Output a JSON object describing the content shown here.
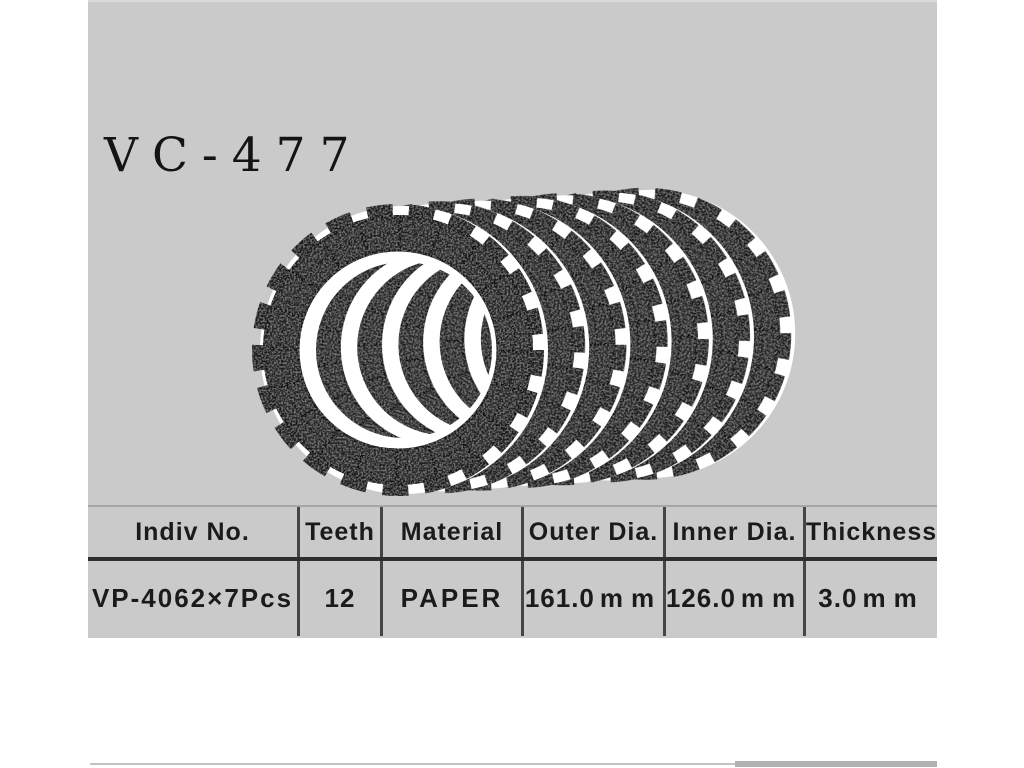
{
  "title": "VC-477",
  "photo": {
    "description": "stack of fanned black clutch friction plates",
    "plate_count": 7
  },
  "table": {
    "headers": [
      "Indiv No.",
      "Teeth",
      "Material",
      "Outer Dia.",
      "Inner Dia.",
      "Thickness"
    ],
    "row": {
      "indiv_no": "VP-4062×7Pcs",
      "teeth": "12",
      "material": "PAPER",
      "outer_dia": "161.0",
      "outer_dia_unit": "mm",
      "inner_dia": "126.0",
      "inner_dia_unit": "mm",
      "thickness": "3.0",
      "thickness_unit": "mm"
    }
  },
  "colors": {
    "panel_bg": "#cacaca",
    "text": "#1b1b1b",
    "divider": "#454545",
    "separator": "#2e2e2e",
    "plate_dark": "#242424",
    "highlight": "#ffffff"
  }
}
